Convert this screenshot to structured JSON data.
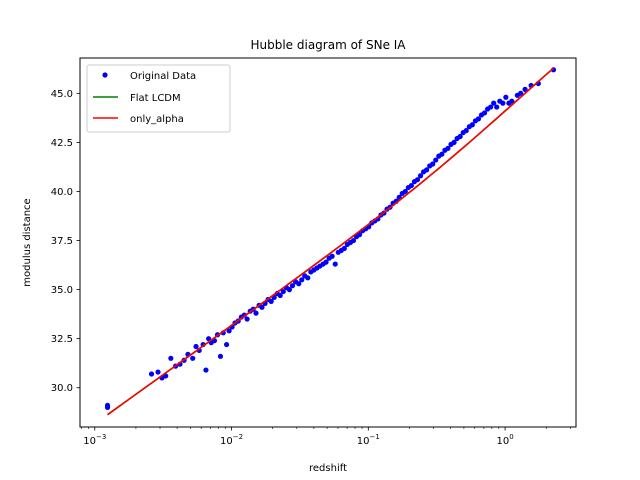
{
  "chart_data": {
    "type": "scatter",
    "title": "Hubble diagram of SNe IA",
    "xlabel": "redshift",
    "ylabel": "modulus distance",
    "xscale": "log",
    "xlim": [
      0.00078,
      3.3
    ],
    "ylim": [
      28.0,
      46.8
    ],
    "xticks": [
      0.001,
      0.01,
      0.1,
      1
    ],
    "xtick_labels": [
      {
        "base": "10",
        "exp": "−3"
      },
      {
        "base": "10",
        "exp": "−2"
      },
      {
        "base": "10",
        "exp": "−1"
      },
      {
        "base": "10",
        "exp": "0"
      }
    ],
    "yticks": [
      30.0,
      32.5,
      35.0,
      37.5,
      40.0,
      42.5,
      45.0
    ],
    "ytick_labels": [
      "30.0",
      "32.5",
      "35.0",
      "37.5",
      "40.0",
      "42.5",
      "45.0"
    ],
    "grid": false,
    "legend_position": "top-left",
    "series": [
      {
        "name": "Original Data",
        "kind": "scatter",
        "color": "#0000ff",
        "points": [
          [
            0.00124,
            29.0
          ],
          [
            0.00124,
            29.1
          ],
          [
            0.0026,
            30.7
          ],
          [
            0.0029,
            30.8
          ],
          [
            0.0031,
            30.5
          ],
          [
            0.0033,
            30.6
          ],
          [
            0.0036,
            31.5
          ],
          [
            0.0039,
            31.1
          ],
          [
            0.0042,
            31.2
          ],
          [
            0.0045,
            31.4
          ],
          [
            0.0048,
            31.7
          ],
          [
            0.0052,
            31.5
          ],
          [
            0.0055,
            32.1
          ],
          [
            0.0058,
            31.9
          ],
          [
            0.0062,
            32.2
          ],
          [
            0.0065,
            30.9
          ],
          [
            0.0068,
            32.5
          ],
          [
            0.0071,
            32.3
          ],
          [
            0.0075,
            32.4
          ],
          [
            0.0079,
            32.7
          ],
          [
            0.0083,
            31.6
          ],
          [
            0.0087,
            32.8
          ],
          [
            0.0092,
            32.2
          ],
          [
            0.0096,
            32.9
          ],
          [
            0.0101,
            33.1
          ],
          [
            0.0106,
            33.3
          ],
          [
            0.0112,
            33.4
          ],
          [
            0.0118,
            33.6
          ],
          [
            0.0124,
            33.7
          ],
          [
            0.013,
            33.5
          ],
          [
            0.0137,
            33.9
          ],
          [
            0.0144,
            34.0
          ],
          [
            0.0151,
            33.8
          ],
          [
            0.0159,
            34.2
          ],
          [
            0.0167,
            34.1
          ],
          [
            0.0176,
            34.3
          ],
          [
            0.0185,
            34.5
          ],
          [
            0.0195,
            34.4
          ],
          [
            0.0205,
            34.6
          ],
          [
            0.0216,
            34.8
          ],
          [
            0.0227,
            34.7
          ],
          [
            0.0239,
            34.9
          ],
          [
            0.0252,
            35.1
          ],
          [
            0.0265,
            35.0
          ],
          [
            0.0279,
            35.2
          ],
          [
            0.0294,
            35.4
          ],
          [
            0.031,
            35.3
          ],
          [
            0.0326,
            35.5
          ],
          [
            0.0343,
            35.7
          ],
          [
            0.0361,
            35.6
          ],
          [
            0.038,
            35.9
          ],
          [
            0.04,
            36.0
          ],
          [
            0.0421,
            36.1
          ],
          [
            0.0443,
            36.2
          ],
          [
            0.0467,
            36.3
          ],
          [
            0.0491,
            36.4
          ],
          [
            0.0517,
            36.6
          ],
          [
            0.0544,
            36.7
          ],
          [
            0.0573,
            36.3
          ],
          [
            0.0603,
            36.9
          ],
          [
            0.0635,
            37.0
          ],
          [
            0.0668,
            37.1
          ],
          [
            0.0703,
            37.3
          ],
          [
            0.074,
            37.4
          ],
          [
            0.0779,
            37.5
          ],
          [
            0.082,
            37.7
          ],
          [
            0.0863,
            37.8
          ],
          [
            0.0909,
            38.0
          ],
          [
            0.0957,
            38.1
          ],
          [
            0.1007,
            38.2
          ],
          [
            0.106,
            38.4
          ],
          [
            0.1116,
            38.5
          ],
          [
            0.1175,
            38.6
          ],
          [
            0.1237,
            38.8
          ],
          [
            0.1302,
            38.9
          ],
          [
            0.137,
            39.1
          ],
          [
            0.1442,
            39.2
          ],
          [
            0.1518,
            39.4
          ],
          [
            0.1598,
            39.5
          ],
          [
            0.1682,
            39.7
          ],
          [
            0.1771,
            39.9
          ],
          [
            0.1864,
            40.0
          ],
          [
            0.1962,
            40.2
          ],
          [
            0.2065,
            40.3
          ],
          [
            0.2174,
            40.5
          ],
          [
            0.2288,
            40.6
          ],
          [
            0.2409,
            40.8
          ],
          [
            0.2536,
            41.0
          ],
          [
            0.2669,
            41.1
          ],
          [
            0.281,
            41.3
          ],
          [
            0.2958,
            41.4
          ],
          [
            0.3113,
            41.6
          ],
          [
            0.3277,
            41.8
          ],
          [
            0.345,
            41.9
          ],
          [
            0.3632,
            42.1
          ],
          [
            0.3823,
            42.2
          ],
          [
            0.4024,
            42.4
          ],
          [
            0.4236,
            42.5
          ],
          [
            0.4459,
            42.7
          ],
          [
            0.4694,
            42.8
          ],
          [
            0.4941,
            43.0
          ],
          [
            0.5201,
            43.1
          ],
          [
            0.5475,
            43.3
          ],
          [
            0.5763,
            43.4
          ],
          [
            0.6067,
            43.6
          ],
          [
            0.6386,
            43.7
          ],
          [
            0.6722,
            43.9
          ],
          [
            0.7076,
            44.0
          ],
          [
            0.7449,
            44.2
          ],
          [
            0.7841,
            44.3
          ],
          [
            0.8254,
            44.5
          ],
          [
            0.8688,
            44.3
          ],
          [
            0.9146,
            44.6
          ],
          [
            0.9627,
            44.5
          ],
          [
            1.013,
            44.8
          ],
          [
            1.067,
            44.5
          ],
          [
            1.12,
            44.6
          ],
          [
            1.23,
            44.9
          ],
          [
            1.3,
            45.0
          ],
          [
            1.4,
            45.2
          ],
          [
            1.55,
            45.4
          ],
          [
            1.75,
            45.5
          ],
          [
            2.26,
            46.2
          ]
        ]
      },
      {
        "name": "Flat LCDM",
        "kind": "line",
        "color": "#008000",
        "curve": {
          "H0": 70,
          "Om": 0.3,
          "zmin": 0.00124,
          "zmax": 2.26
        }
      },
      {
        "name": "only_alpha",
        "kind": "line",
        "color": "#ff0000",
        "curve": {
          "H0": 70,
          "Om": 0.3,
          "zmin": 0.00124,
          "zmax": 2.26
        }
      }
    ]
  }
}
